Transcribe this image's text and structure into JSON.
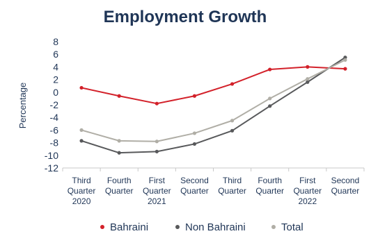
{
  "chart_data": {
    "type": "line",
    "title": "Employment Growth",
    "ylabel": "Percentage",
    "xlabel": "",
    "ylim": [
      -12,
      8
    ],
    "yticks": [
      8,
      6,
      4,
      2,
      0,
      -2,
      -4,
      -6,
      -8,
      -10,
      -12
    ],
    "grid": false,
    "legend_position": "bottom",
    "categories": [
      [
        "Third",
        "Quarter",
        "2020"
      ],
      [
        "Fourth",
        "Quarter"
      ],
      [
        "First",
        "Quarter",
        "2021"
      ],
      [
        "Second",
        "Quarter"
      ],
      [
        "Third",
        "Quarter"
      ],
      [
        "Fourth",
        "Quarter"
      ],
      [
        "First",
        "Quarter",
        "2022"
      ],
      [
        "Second",
        "Quarter"
      ]
    ],
    "series": [
      {
        "name": "Bahraini",
        "color": "#d3212a",
        "values": [
          0.7,
          -0.6,
          -1.8,
          -0.6,
          1.3,
          3.6,
          4.0,
          3.7
        ]
      },
      {
        "name": "Non Bahraini",
        "color": "#58595b",
        "values": [
          -7.7,
          -9.6,
          -9.4,
          -8.2,
          -6.1,
          -2.2,
          1.6,
          5.5
        ]
      },
      {
        "name": "Total",
        "color": "#b0aea6",
        "values": [
          -6.0,
          -7.7,
          -7.8,
          -6.5,
          -4.5,
          -1.0,
          2.1,
          5.1
        ]
      }
    ]
  }
}
